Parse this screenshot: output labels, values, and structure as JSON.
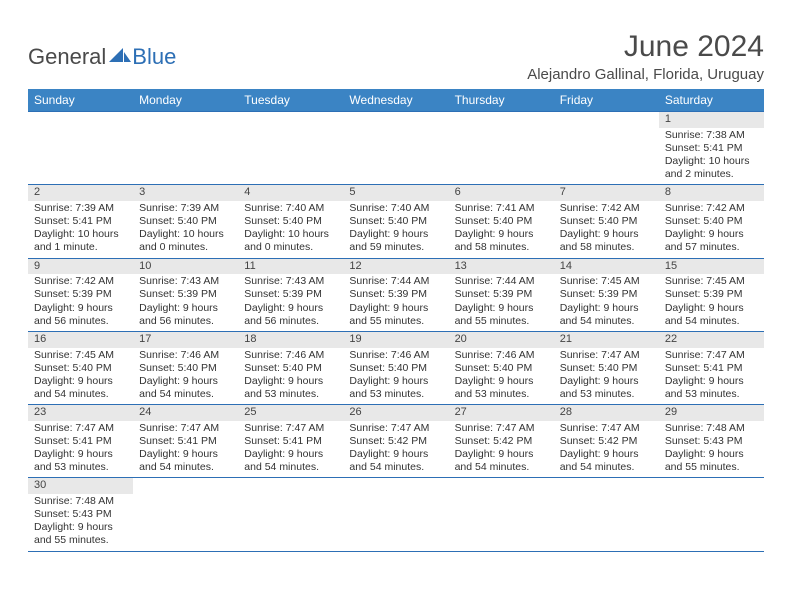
{
  "logo": {
    "part1": "General",
    "part2": "Blue"
  },
  "title": "June 2024",
  "location": "Alejandro Gallinal, Florida, Uruguay",
  "colors": {
    "header_bg": "#3b84c4",
    "header_text": "#ffffff",
    "divider": "#2d6fb5",
    "daynum_bg": "#e8e8e8",
    "text": "#333333",
    "title_text": "#4a4a4a",
    "logo_blue": "#2d6fb5"
  },
  "day_names": [
    "Sunday",
    "Monday",
    "Tuesday",
    "Wednesday",
    "Thursday",
    "Friday",
    "Saturday"
  ],
  "weeks": [
    [
      null,
      null,
      null,
      null,
      null,
      null,
      {
        "n": "1",
        "sunrise": "7:38 AM",
        "sunset": "5:41 PM",
        "daylight": "10 hours and 2 minutes."
      }
    ],
    [
      {
        "n": "2",
        "sunrise": "7:39 AM",
        "sunset": "5:41 PM",
        "daylight": "10 hours and 1 minute."
      },
      {
        "n": "3",
        "sunrise": "7:39 AM",
        "sunset": "5:40 PM",
        "daylight": "10 hours and 0 minutes."
      },
      {
        "n": "4",
        "sunrise": "7:40 AM",
        "sunset": "5:40 PM",
        "daylight": "10 hours and 0 minutes."
      },
      {
        "n": "5",
        "sunrise": "7:40 AM",
        "sunset": "5:40 PM",
        "daylight": "9 hours and 59 minutes."
      },
      {
        "n": "6",
        "sunrise": "7:41 AM",
        "sunset": "5:40 PM",
        "daylight": "9 hours and 58 minutes."
      },
      {
        "n": "7",
        "sunrise": "7:42 AM",
        "sunset": "5:40 PM",
        "daylight": "9 hours and 58 minutes."
      },
      {
        "n": "8",
        "sunrise": "7:42 AM",
        "sunset": "5:40 PM",
        "daylight": "9 hours and 57 minutes."
      }
    ],
    [
      {
        "n": "9",
        "sunrise": "7:42 AM",
        "sunset": "5:39 PM",
        "daylight": "9 hours and 56 minutes."
      },
      {
        "n": "10",
        "sunrise": "7:43 AM",
        "sunset": "5:39 PM",
        "daylight": "9 hours and 56 minutes."
      },
      {
        "n": "11",
        "sunrise": "7:43 AM",
        "sunset": "5:39 PM",
        "daylight": "9 hours and 56 minutes."
      },
      {
        "n": "12",
        "sunrise": "7:44 AM",
        "sunset": "5:39 PM",
        "daylight": "9 hours and 55 minutes."
      },
      {
        "n": "13",
        "sunrise": "7:44 AM",
        "sunset": "5:39 PM",
        "daylight": "9 hours and 55 minutes."
      },
      {
        "n": "14",
        "sunrise": "7:45 AM",
        "sunset": "5:39 PM",
        "daylight": "9 hours and 54 minutes."
      },
      {
        "n": "15",
        "sunrise": "7:45 AM",
        "sunset": "5:39 PM",
        "daylight": "9 hours and 54 minutes."
      }
    ],
    [
      {
        "n": "16",
        "sunrise": "7:45 AM",
        "sunset": "5:40 PM",
        "daylight": "9 hours and 54 minutes."
      },
      {
        "n": "17",
        "sunrise": "7:46 AM",
        "sunset": "5:40 PM",
        "daylight": "9 hours and 54 minutes."
      },
      {
        "n": "18",
        "sunrise": "7:46 AM",
        "sunset": "5:40 PM",
        "daylight": "9 hours and 53 minutes."
      },
      {
        "n": "19",
        "sunrise": "7:46 AM",
        "sunset": "5:40 PM",
        "daylight": "9 hours and 53 minutes."
      },
      {
        "n": "20",
        "sunrise": "7:46 AM",
        "sunset": "5:40 PM",
        "daylight": "9 hours and 53 minutes."
      },
      {
        "n": "21",
        "sunrise": "7:47 AM",
        "sunset": "5:40 PM",
        "daylight": "9 hours and 53 minutes."
      },
      {
        "n": "22",
        "sunrise": "7:47 AM",
        "sunset": "5:41 PM",
        "daylight": "9 hours and 53 minutes."
      }
    ],
    [
      {
        "n": "23",
        "sunrise": "7:47 AM",
        "sunset": "5:41 PM",
        "daylight": "9 hours and 53 minutes."
      },
      {
        "n": "24",
        "sunrise": "7:47 AM",
        "sunset": "5:41 PM",
        "daylight": "9 hours and 54 minutes."
      },
      {
        "n": "25",
        "sunrise": "7:47 AM",
        "sunset": "5:41 PM",
        "daylight": "9 hours and 54 minutes."
      },
      {
        "n": "26",
        "sunrise": "7:47 AM",
        "sunset": "5:42 PM",
        "daylight": "9 hours and 54 minutes."
      },
      {
        "n": "27",
        "sunrise": "7:47 AM",
        "sunset": "5:42 PM",
        "daylight": "9 hours and 54 minutes."
      },
      {
        "n": "28",
        "sunrise": "7:47 AM",
        "sunset": "5:42 PM",
        "daylight": "9 hours and 54 minutes."
      },
      {
        "n": "29",
        "sunrise": "7:48 AM",
        "sunset": "5:43 PM",
        "daylight": "9 hours and 55 minutes."
      }
    ],
    [
      {
        "n": "30",
        "sunrise": "7:48 AM",
        "sunset": "5:43 PM",
        "daylight": "9 hours and 55 minutes."
      },
      null,
      null,
      null,
      null,
      null,
      null
    ]
  ],
  "labels": {
    "sunrise": "Sunrise: ",
    "sunset": "Sunset: ",
    "daylight": "Daylight: "
  }
}
